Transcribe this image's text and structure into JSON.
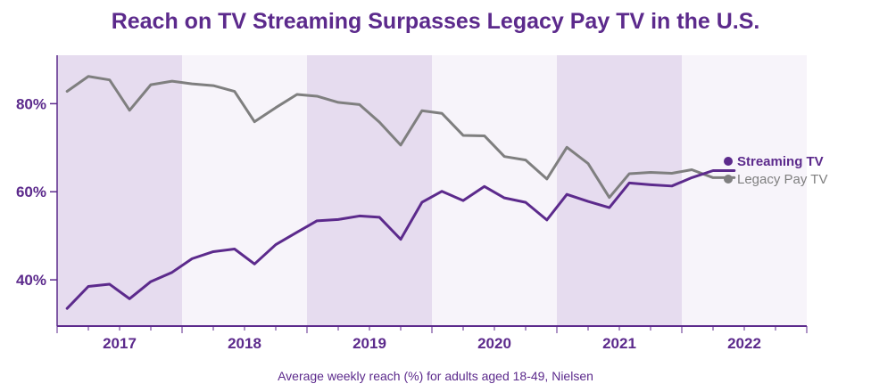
{
  "chart_data": {
    "type": "line",
    "title": "Reach on TV Streaming Surpasses Legacy Pay TV in the U.S.",
    "caption": "Average weekly reach (%) for adults aged 18-49, Nielsen",
    "xlabel": "",
    "ylabel": "",
    "x_ticks": [
      "2017",
      "2018",
      "2019",
      "2020",
      "2021",
      "2022"
    ],
    "y_ticks": [
      {
        "value": 40,
        "label": "40%"
      },
      {
        "value": 60,
        "label": "60%"
      },
      {
        "value": 80,
        "label": "80%"
      }
    ],
    "ylim": [
      29.5,
      91
    ],
    "xlim": [
      2016.5,
      2022.5
    ],
    "x": [
      2016.58,
      2016.75,
      2016.92,
      2017.08,
      2017.25,
      2017.42,
      2017.58,
      2017.75,
      2017.92,
      2018.08,
      2018.25,
      2018.42,
      2018.58,
      2018.75,
      2018.92,
      2019.08,
      2019.25,
      2019.42,
      2019.58,
      2019.75,
      2019.92,
      2020.08,
      2020.25,
      2020.42,
      2020.58,
      2020.75,
      2020.92,
      2021.08,
      2021.25,
      2021.42,
      2021.58,
      2021.75,
      2021.92
    ],
    "series": [
      {
        "name": "Streaming TV",
        "color": "#5c2a8c",
        "values": [
          33.5,
          38.5,
          39,
          35.7,
          39.6,
          41.7,
          44.8,
          46.4,
          47,
          43.6,
          48,
          50.8,
          53.4,
          53.7,
          54.5,
          54.2,
          49.2,
          57.6,
          60.1,
          58,
          61.2,
          58.6,
          57.6,
          53.6,
          59.4,
          57.8,
          56.4,
          62,
          61.6,
          61.3,
          63.2,
          64.8,
          64.8
        ]
      },
      {
        "name": "Legacy Pay TV",
        "color": "#7f7f7f",
        "values": [
          82.8,
          86.2,
          85.4,
          78.5,
          84.3,
          85.1,
          84.5,
          84.1,
          82.8,
          75.9,
          79.1,
          82.1,
          81.7,
          80.3,
          79.8,
          75.8,
          70.6,
          78.4,
          77.8,
          72.8,
          72.7,
          68,
          67.2,
          62.9,
          70.1,
          66.4,
          58.7,
          64.1,
          64.4,
          64.2,
          65,
          63.2,
          63.2
        ]
      }
    ],
    "bands": [
      [
        2016.5,
        2017.5
      ],
      [
        2018.5,
        2019.5
      ],
      [
        2020.5,
        2021.5
      ]
    ],
    "legend": "right",
    "grid": false,
    "colors": {
      "title": "#5c2a8c",
      "tick": "#5c2a8c",
      "axis": "#5c2a8c",
      "band": "#e6dcef",
      "background": "#f7f4fa",
      "caption": "#5c2a8c"
    }
  }
}
